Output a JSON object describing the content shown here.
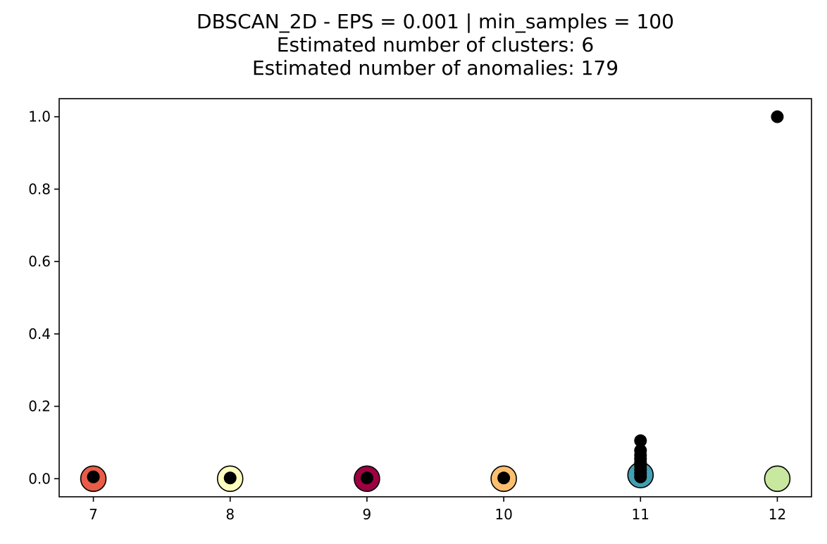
{
  "chart_data": {
    "type": "scatter",
    "title_lines": [
      "DBSCAN_2D - EPS = 0.001 | min_samples = 100",
      "Estimated number of clusters: 6",
      "Estimated number of anomalies: 179"
    ],
    "xlabel": "",
    "ylabel": "",
    "xlim": [
      6.75,
      12.25
    ],
    "ylim": [
      -0.05,
      1.05
    ],
    "x_ticks": [
      7,
      8,
      9,
      10,
      11,
      12
    ],
    "x_tick_labels": [
      "7",
      "8",
      "9",
      "10",
      "11",
      "12"
    ],
    "y_ticks": [
      0.0,
      0.2,
      0.4,
      0.6,
      0.8,
      1.0
    ],
    "y_tick_labels": [
      "0.0",
      "0.2",
      "0.4",
      "0.6",
      "0.8",
      "1.0"
    ],
    "grid": false,
    "legend": false,
    "clusters": [
      {
        "x": 7,
        "y": 0.0,
        "color": "#e95c47"
      },
      {
        "x": 8,
        "y": 0.0,
        "color": "#fefebe"
      },
      {
        "x": 9,
        "y": 0.0,
        "color": "#9e0142"
      },
      {
        "x": 10,
        "y": 0.0,
        "color": "#fdbf6f"
      },
      {
        "x": 11,
        "y": 0.01,
        "color": "#439fb3"
      },
      {
        "x": 12,
        "y": 0.0,
        "color": "#c7e89e"
      }
    ],
    "anomalies": {
      "color": "#000000",
      "points": [
        [
          7,
          0.005
        ],
        [
          8,
          0.002
        ],
        [
          9,
          0.002
        ],
        [
          10,
          0.002
        ],
        [
          11,
          0.005
        ],
        [
          11,
          0.015
        ],
        [
          11,
          0.025
        ],
        [
          11,
          0.035
        ],
        [
          11,
          0.045
        ],
        [
          11,
          0.055
        ],
        [
          11,
          0.065
        ],
        [
          11,
          0.078
        ],
        [
          11,
          0.105
        ],
        [
          12,
          1.0
        ]
      ]
    }
  }
}
